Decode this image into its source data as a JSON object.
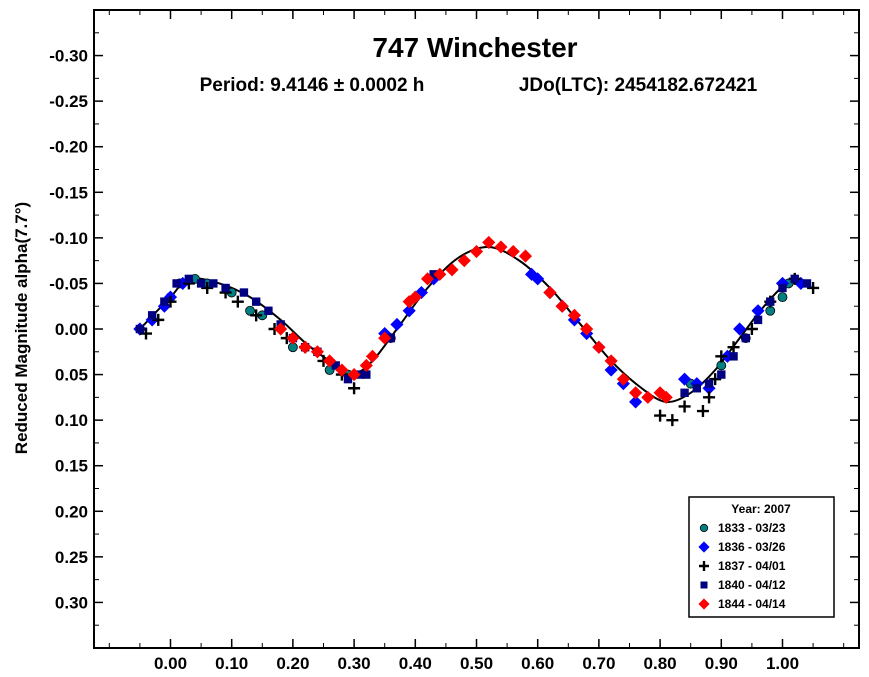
{
  "chart_data": {
    "type": "scatter",
    "title": "747 Winchester",
    "subtitle_period": "Period: 9.4146 ± 0.0002 h",
    "subtitle_epoch": "JDo(LTC): 2454182.672421",
    "xlabel": "",
    "ylabel": "Reduced Magnitude alpha(7.7°)",
    "xlim": [
      -0.125,
      1.125
    ],
    "ylim": [
      -0.35,
      0.35
    ],
    "y_inverted": true,
    "grid": false,
    "legend_position": "bottom-right",
    "legend_title": "Year: 2007",
    "x_ticks": [
      "0.00",
      "0.10",
      "0.20",
      "0.30",
      "0.40",
      "0.50",
      "0.60",
      "0.70",
      "0.80",
      "0.90",
      "1.00"
    ],
    "y_ticks": [
      "-0.30",
      "-0.25",
      "-0.20",
      "-0.15",
      "-0.10",
      "-0.05",
      "0.00",
      "0.05",
      "0.10",
      "0.15",
      "0.20",
      "0.25",
      "0.30"
    ],
    "fit_curve": {
      "color": "#000000",
      "points": [
        [
          -0.05,
          0.0
        ],
        [
          0.0,
          -0.035
        ],
        [
          0.03,
          -0.055
        ],
        [
          0.08,
          -0.05
        ],
        [
          0.13,
          -0.035
        ],
        [
          0.18,
          -0.01
        ],
        [
          0.22,
          0.015
        ],
        [
          0.26,
          0.035
        ],
        [
          0.3,
          0.048
        ],
        [
          0.33,
          0.035
        ],
        [
          0.37,
          0.0
        ],
        [
          0.42,
          -0.045
        ],
        [
          0.47,
          -0.078
        ],
        [
          0.52,
          -0.09
        ],
        [
          0.57,
          -0.075
        ],
        [
          0.62,
          -0.045
        ],
        [
          0.67,
          -0.005
        ],
        [
          0.72,
          0.035
        ],
        [
          0.77,
          0.065
        ],
        [
          0.81,
          0.08
        ],
        [
          0.85,
          0.07
        ],
        [
          0.89,
          0.045
        ],
        [
          0.93,
          0.01
        ],
        [
          0.97,
          -0.025
        ],
        [
          1.01,
          -0.05
        ],
        [
          1.05,
          -0.045
        ]
      ]
    },
    "series": [
      {
        "name": "1833 - 03/23",
        "marker": "circle",
        "color": "#008080",
        "x": [
          0.0,
          0.015,
          0.04,
          0.06,
          0.1,
          0.13,
          0.15,
          0.2,
          0.22,
          0.26,
          0.29,
          0.36,
          0.85,
          0.9,
          0.94,
          0.98,
          1.0,
          1.01
        ],
        "y": [
          -0.035,
          -0.05,
          -0.055,
          -0.05,
          -0.04,
          -0.02,
          -0.015,
          0.02,
          0.02,
          0.045,
          0.05,
          0.01,
          0.06,
          0.04,
          0.01,
          -0.02,
          -0.035,
          -0.05
        ]
      },
      {
        "name": "1836 - 03/26",
        "marker": "diamond",
        "color": "#0000ff",
        "x": [
          -0.05,
          -0.03,
          -0.01,
          0.0,
          0.02,
          0.35,
          0.37,
          0.39,
          0.41,
          0.43,
          0.59,
          0.6,
          0.62,
          0.64,
          0.66,
          0.68,
          0.7,
          0.72,
          0.74,
          0.76,
          0.84,
          0.86,
          0.88,
          0.91,
          0.93,
          0.96,
          1.0,
          1.03
        ],
        "y": [
          0.0,
          -0.01,
          -0.025,
          -0.035,
          -0.05,
          0.005,
          -0.005,
          -0.02,
          -0.04,
          -0.055,
          -0.06,
          -0.055,
          -0.04,
          -0.025,
          -0.01,
          0.005,
          0.02,
          0.045,
          0.06,
          0.08,
          0.055,
          0.06,
          0.065,
          0.03,
          0.0,
          -0.02,
          -0.05,
          -0.05
        ]
      },
      {
        "name": "1837 - 04/01",
        "marker": "plus",
        "color": "#000000",
        "x": [
          -0.04,
          -0.02,
          0.0,
          0.03,
          0.06,
          0.09,
          0.11,
          0.14,
          0.17,
          0.19,
          0.22,
          0.25,
          0.28,
          0.3,
          0.8,
          0.82,
          0.84,
          0.87,
          0.88,
          0.89,
          0.9,
          0.92,
          0.95,
          0.98,
          1.02,
          1.05
        ],
        "y": [
          0.005,
          -0.01,
          -0.03,
          -0.05,
          -0.045,
          -0.04,
          -0.03,
          -0.015,
          0.0,
          0.01,
          0.02,
          0.035,
          0.05,
          0.065,
          0.095,
          0.1,
          0.085,
          0.09,
          0.075,
          0.055,
          0.03,
          0.02,
          0.0,
          -0.03,
          -0.055,
          -0.045
        ]
      },
      {
        "name": "1840 - 04/12",
        "marker": "square",
        "color": "#000080",
        "x": [
          -0.05,
          -0.03,
          -0.01,
          0.01,
          0.03,
          0.05,
          0.07,
          0.09,
          0.12,
          0.14,
          0.16,
          0.18,
          0.2,
          0.22,
          0.24,
          0.27,
          0.29,
          0.31,
          0.32,
          0.36,
          0.43,
          0.84,
          0.86,
          0.88,
          0.9,
          0.92,
          0.94,
          0.96,
          0.98,
          1.0,
          1.02,
          1.04
        ],
        "y": [
          0.0,
          -0.015,
          -0.03,
          -0.05,
          -0.055,
          -0.05,
          -0.05,
          -0.045,
          -0.04,
          -0.03,
          -0.02,
          -0.005,
          0.01,
          0.02,
          0.025,
          0.04,
          0.055,
          0.05,
          0.05,
          0.01,
          -0.06,
          0.07,
          0.065,
          0.06,
          0.05,
          0.03,
          0.01,
          -0.01,
          -0.03,
          -0.045,
          -0.055,
          -0.05
        ]
      },
      {
        "name": "1844 - 04/14",
        "marker": "diamond",
        "color": "#ff0000",
        "x": [
          0.18,
          0.2,
          0.22,
          0.24,
          0.26,
          0.28,
          0.3,
          0.32,
          0.33,
          0.35,
          0.39,
          0.4,
          0.42,
          0.44,
          0.46,
          0.48,
          0.5,
          0.52,
          0.54,
          0.56,
          0.58,
          0.62,
          0.64,
          0.66,
          0.68,
          0.7,
          0.72,
          0.74,
          0.76,
          0.78,
          0.8,
          0.81
        ],
        "y": [
          0.0,
          0.01,
          0.02,
          0.025,
          0.035,
          0.045,
          0.05,
          0.04,
          0.03,
          0.01,
          -0.03,
          -0.035,
          -0.055,
          -0.06,
          -0.065,
          -0.075,
          -0.085,
          -0.095,
          -0.09,
          -0.085,
          -0.08,
          -0.04,
          -0.025,
          -0.015,
          0.0,
          0.02,
          0.035,
          0.055,
          0.07,
          0.075,
          0.07,
          0.075
        ]
      }
    ]
  }
}
